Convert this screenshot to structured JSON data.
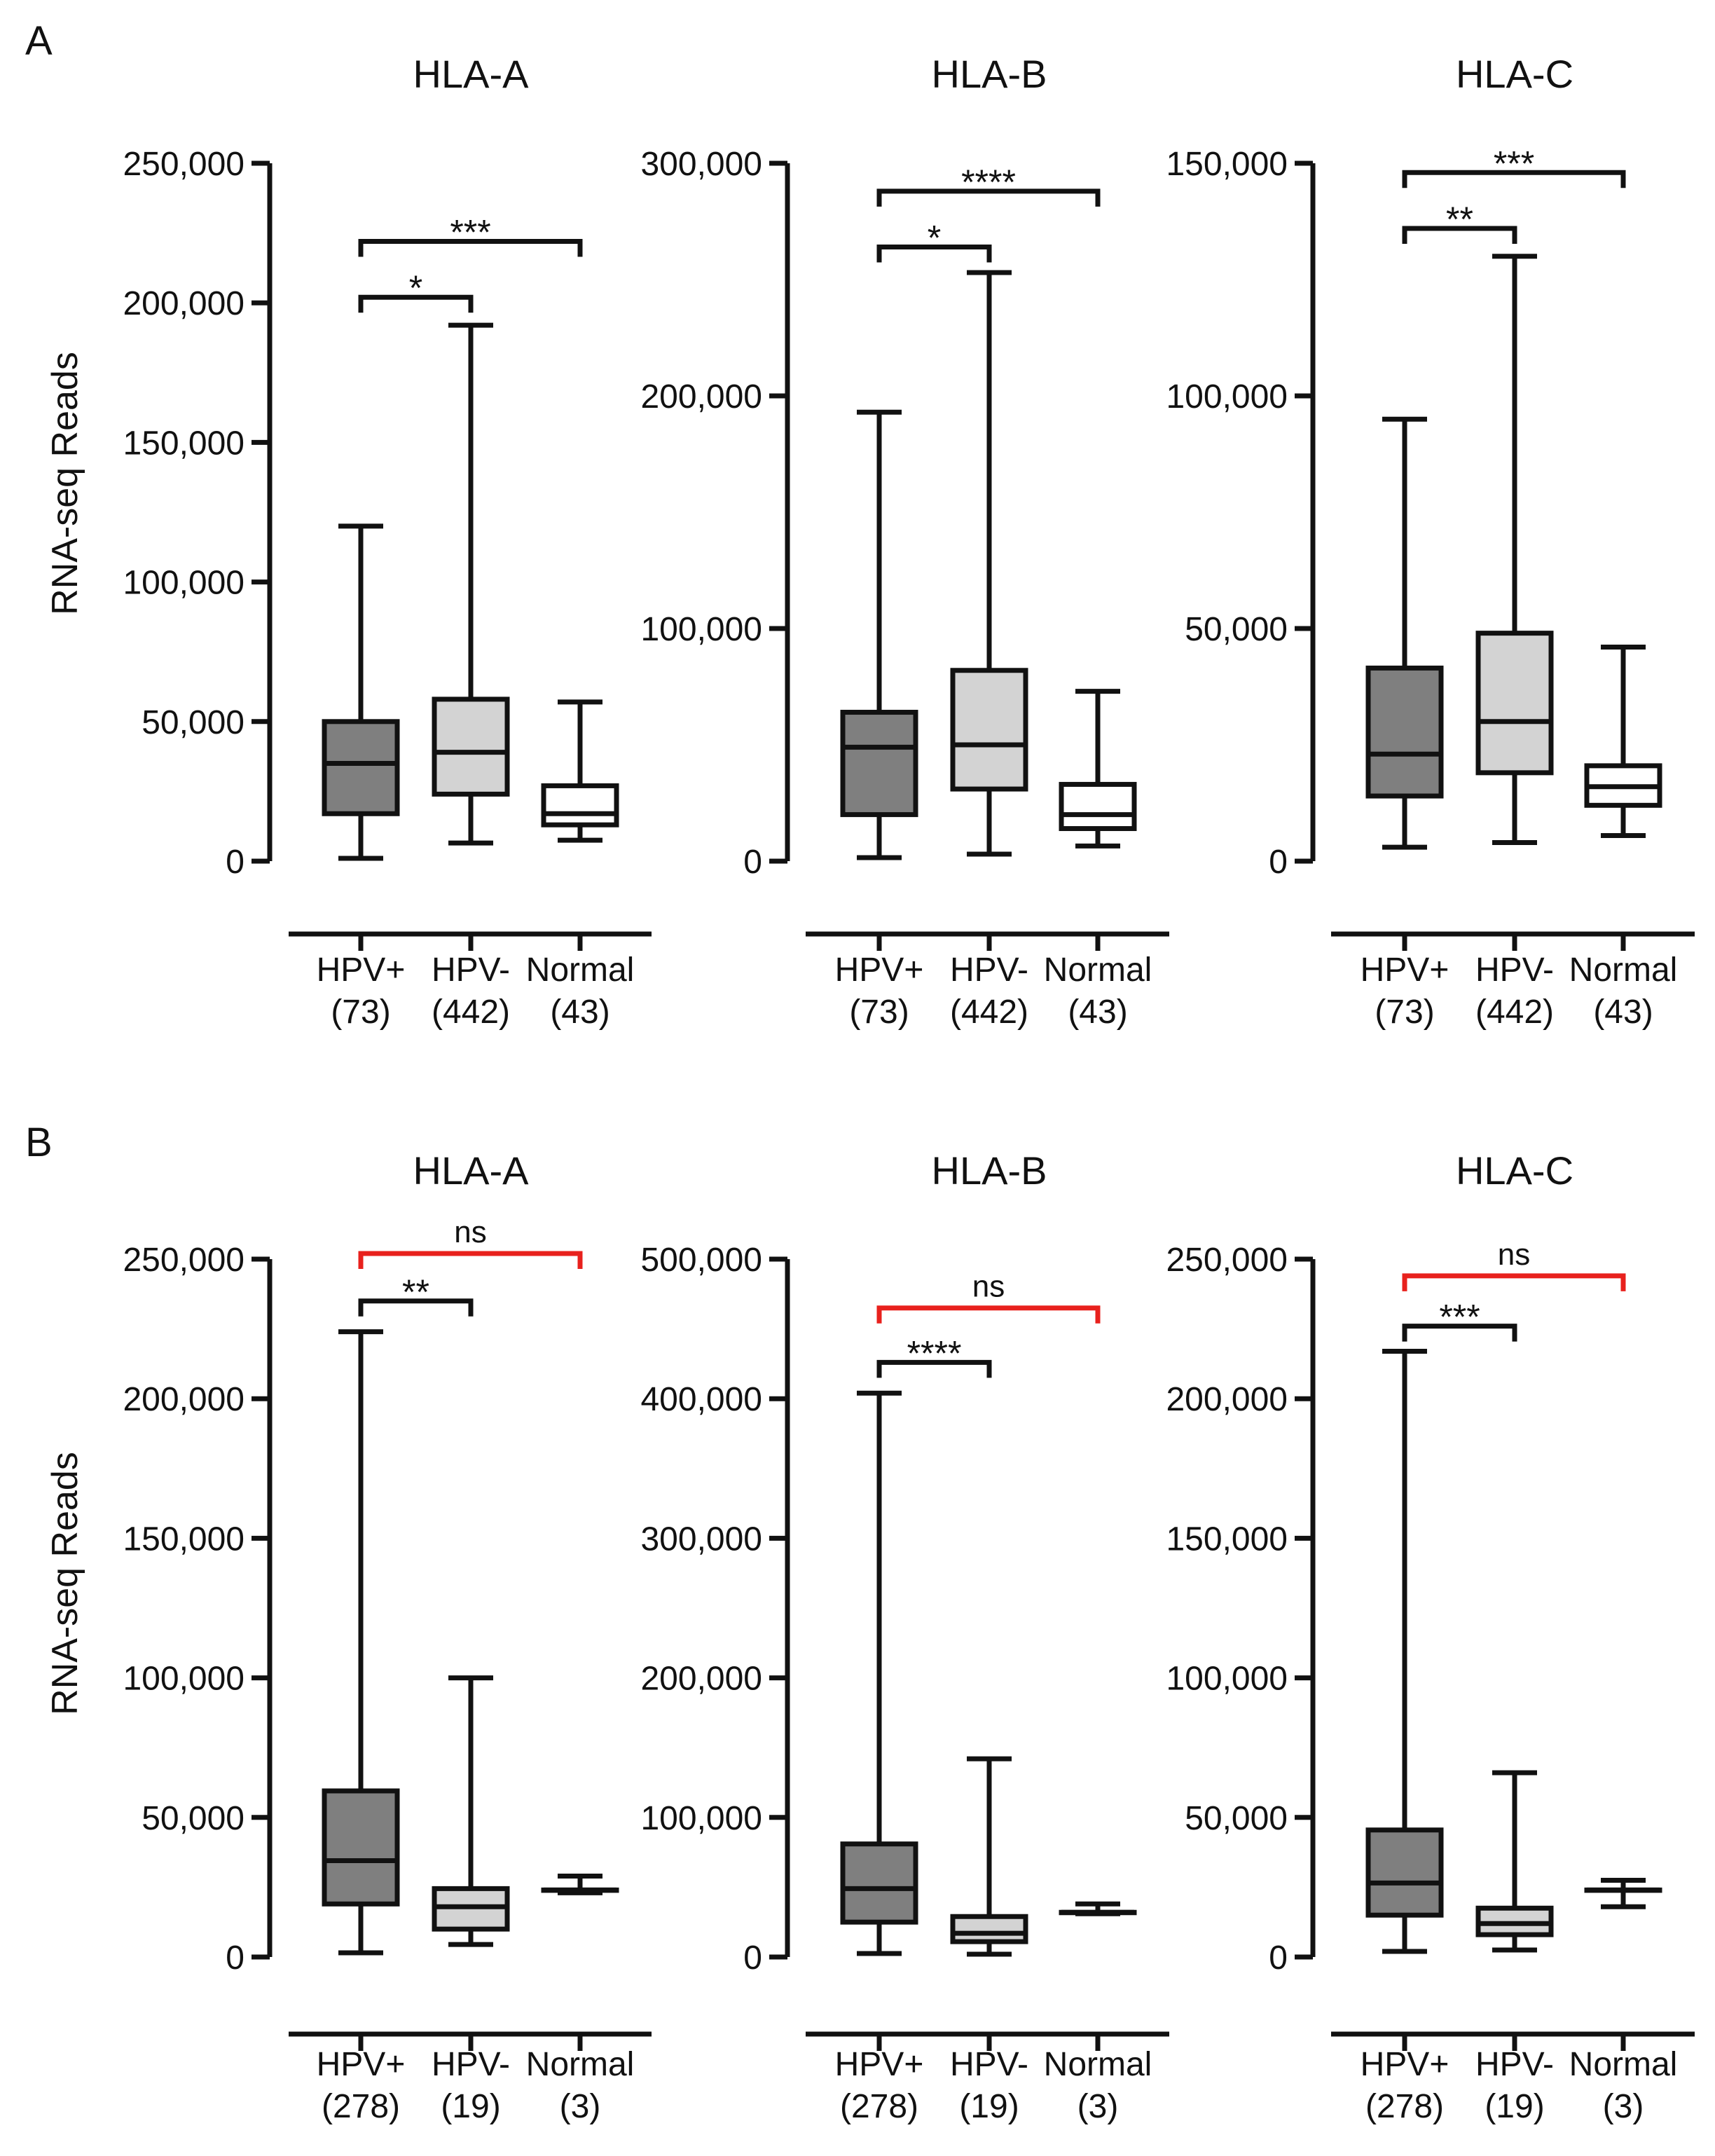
{
  "figure": {
    "panels": [
      {
        "letter": "A",
        "y_label": "RNA-seq Reads"
      },
      {
        "letter": "B",
        "y_label": "RNA-seq Reads"
      }
    ]
  },
  "colors": {
    "hpv_pos_fill": "#7f7f7f",
    "hpv_neg_fill": "#d3d3d3",
    "normal_fill": "#ffffff",
    "stroke": "#111111",
    "bracket": "#111111",
    "ns_bracket": "#e8211d"
  },
  "chart_data": [
    {
      "type": "boxplot",
      "panel": "A",
      "title": "HLA-A",
      "ylim": [
        0,
        250000
      ],
      "yticks": [
        "0",
        "50,000",
        "100,000",
        "150,000",
        "200,000",
        "250,000"
      ],
      "ytick_values": [
        0,
        50000,
        100000,
        150000,
        200000,
        250000
      ],
      "categories": [
        "HPV+",
        "HPV-",
        "Normal"
      ],
      "counts": [
        "(73)",
        "(442)",
        "(43)"
      ],
      "boxes": [
        {
          "min": 1000,
          "q1": 17000,
          "median": 35000,
          "q3": 50000,
          "max": 120000
        },
        {
          "min": 6500,
          "q1": 24000,
          "median": 39000,
          "q3": 58000,
          "max": 192000
        },
        {
          "min": 7500,
          "q1": 13000,
          "median": 17000,
          "q3": 27000,
          "max": 57000
        }
      ],
      "comparisons": [
        {
          "from": 0,
          "to": 1,
          "label": "*",
          "y": 202000,
          "ns": false
        },
        {
          "from": 0,
          "to": 2,
          "label": "***",
          "y": 222000,
          "ns": false
        }
      ]
    },
    {
      "type": "boxplot",
      "panel": "A",
      "title": "HLA-B",
      "ylim": [
        0,
        300000
      ],
      "yticks": [
        "0",
        "100,000",
        "200,000",
        "300,000"
      ],
      "ytick_values": [
        0,
        100000,
        200000,
        300000
      ],
      "categories": [
        "HPV+",
        "HPV-",
        "Normal"
      ],
      "counts": [
        "(73)",
        "(442)",
        "(43)"
      ],
      "boxes": [
        {
          "min": 1500,
          "q1": 20000,
          "median": 49000,
          "q3": 64000,
          "max": 193000
        },
        {
          "min": 3000,
          "q1": 31000,
          "median": 50000,
          "q3": 82000,
          "max": 253000
        },
        {
          "min": 6500,
          "q1": 14000,
          "median": 20000,
          "q3": 33000,
          "max": 73000
        }
      ],
      "comparisons": [
        {
          "from": 0,
          "to": 1,
          "label": "*",
          "y": 264000,
          "ns": false
        },
        {
          "from": 0,
          "to": 2,
          "label": "****",
          "y": 288000,
          "ns": false
        }
      ]
    },
    {
      "type": "boxplot",
      "panel": "A",
      "title": "HLA-C",
      "ylim": [
        0,
        150000
      ],
      "yticks": [
        "0",
        "50,000",
        "100,000",
        "150,000"
      ],
      "ytick_values": [
        0,
        50000,
        100000,
        150000
      ],
      "categories": [
        "HPV+",
        "HPV-",
        "Normal"
      ],
      "counts": [
        "(73)",
        "(442)",
        "(43)"
      ],
      "boxes": [
        {
          "min": 3000,
          "q1": 14000,
          "median": 23000,
          "q3": 41500,
          "max": 95000
        },
        {
          "min": 4000,
          "q1": 19000,
          "median": 30000,
          "q3": 49000,
          "max": 130000
        },
        {
          "min": 5500,
          "q1": 12000,
          "median": 16000,
          "q3": 20500,
          "max": 46000
        }
      ],
      "comparisons": [
        {
          "from": 0,
          "to": 1,
          "label": "**",
          "y": 136000,
          "ns": false
        },
        {
          "from": 0,
          "to": 2,
          "label": "***",
          "y": 148000,
          "ns": false
        }
      ]
    },
    {
      "type": "boxplot",
      "panel": "B",
      "title": "HLA-A",
      "ylim": [
        0,
        250000
      ],
      "yticks": [
        "0",
        "50,000",
        "100,000",
        "150,000",
        "200,000",
        "250,000"
      ],
      "ytick_values": [
        0,
        50000,
        100000,
        150000,
        200000,
        250000
      ],
      "categories": [
        "HPV+",
        "HPV-",
        "Normal"
      ],
      "counts": [
        "(278)",
        "(19)",
        "(3)"
      ],
      "boxes": [
        {
          "min": 1500,
          "q1": 19000,
          "median": 34500,
          "q3": 59500,
          "max": 224000
        },
        {
          "min": 4500,
          "q1": 10000,
          "median": 18000,
          "q3": 24500,
          "max": 100000
        },
        {
          "min": 23000,
          "q1": 24000,
          "median": 24000,
          "q3": 24000,
          "max": 29000
        }
      ],
      "comparisons": [
        {
          "from": 0,
          "to": 1,
          "label": "**",
          "y": 235000,
          "ns": false
        },
        {
          "from": 0,
          "to": 2,
          "label": "ns",
          "y": 252000,
          "ns": true
        }
      ]
    },
    {
      "type": "boxplot",
      "panel": "B",
      "title": "HLA-B",
      "ylim": [
        0,
        500000
      ],
      "yticks": [
        "0",
        "100,000",
        "200,000",
        "300,000",
        "400,000",
        "500,000"
      ],
      "ytick_values": [
        0,
        100000,
        200000,
        300000,
        400000,
        500000
      ],
      "categories": [
        "HPV+",
        "HPV-",
        "Normal"
      ],
      "counts": [
        "(278)",
        "(19)",
        "(3)"
      ],
      "boxes": [
        {
          "min": 2500,
          "q1": 25000,
          "median": 49000,
          "q3": 81000,
          "max": 404000
        },
        {
          "min": 2000,
          "q1": 11000,
          "median": 17000,
          "q3": 29000,
          "max": 142000
        },
        {
          "min": 31000,
          "q1": 32000,
          "median": 32000,
          "q3": 32000,
          "max": 38000
        }
      ],
      "comparisons": [
        {
          "from": 0,
          "to": 1,
          "label": "****",
          "y": 426000,
          "ns": false
        },
        {
          "from": 0,
          "to": 2,
          "label": "ns",
          "y": 465000,
          "ns": true
        }
      ]
    },
    {
      "type": "boxplot",
      "panel": "B",
      "title": "HLA-C",
      "ylim": [
        0,
        250000
      ],
      "yticks": [
        "0",
        "50,000",
        "100,000",
        "150,000",
        "200,000",
        "250,000"
      ],
      "ytick_values": [
        0,
        50000,
        100000,
        150000,
        200000,
        250000
      ],
      "categories": [
        "HPV+",
        "HPV-",
        "Normal"
      ],
      "counts": [
        "(278)",
        "(19)",
        "(3)"
      ],
      "boxes": [
        {
          "min": 2000,
          "q1": 15000,
          "median": 26500,
          "q3": 45500,
          "max": 217000
        },
        {
          "min": 2500,
          "q1": 8000,
          "median": 12000,
          "q3": 17500,
          "max": 66000
        },
        {
          "min": 18000,
          "q1": 24000,
          "median": 24000,
          "q3": 24000,
          "max": 27500
        }
      ],
      "comparisons": [
        {
          "from": 0,
          "to": 1,
          "label": "***",
          "y": 226000,
          "ns": false
        },
        {
          "from": 0,
          "to": 2,
          "label": "ns",
          "y": 244000,
          "ns": true
        }
      ]
    }
  ]
}
